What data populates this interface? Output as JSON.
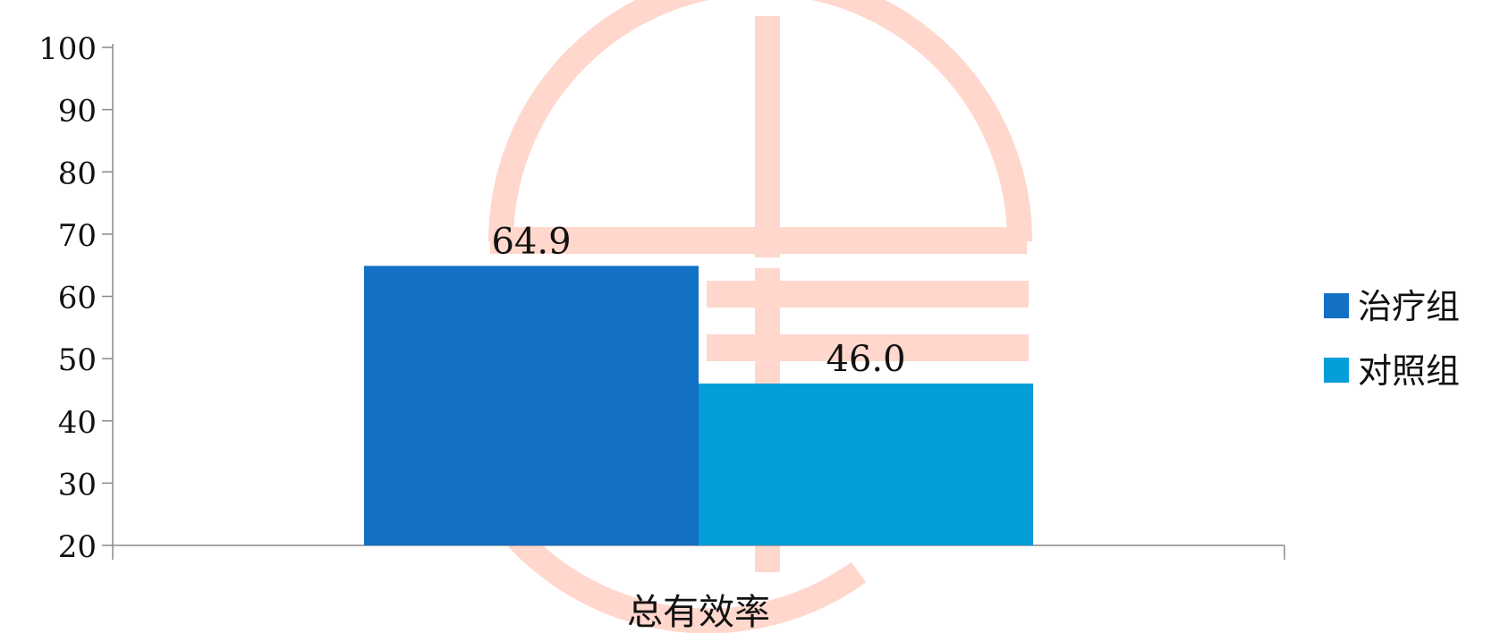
{
  "chart_data": {
    "type": "bar",
    "categories": [
      "总有效率"
    ],
    "series": [
      {
        "name": "治疗组",
        "values": [
          64.9
        ],
        "color": "#1270c5"
      },
      {
        "name": "对照组",
        "values": [
          46.0
        ],
        "color": "#049ed8"
      }
    ],
    "data_labels": [
      "64.9",
      "46.0"
    ],
    "ylim": [
      20,
      100
    ],
    "yticks": [
      "20",
      "30",
      "40",
      "50",
      "60",
      "70",
      "80",
      "90",
      "100"
    ],
    "grid": false,
    "legend_position": "right"
  },
  "colors": {
    "axis": "#8a8a8a",
    "watermark": "#ffd3c8"
  }
}
